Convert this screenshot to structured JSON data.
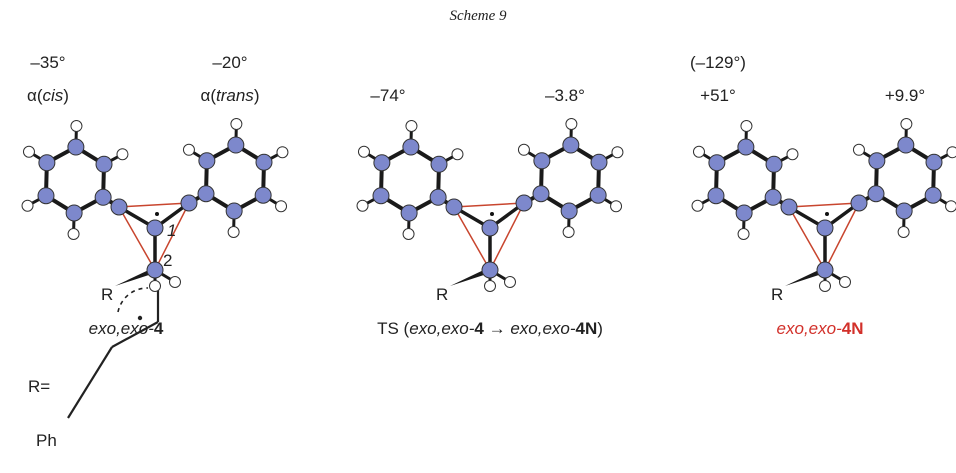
{
  "title": "Scheme 9",
  "molecules": [
    {
      "angles": [
        "–35°",
        "–20°"
      ],
      "alpha_left": [
        "α(",
        "cis",
        ")"
      ],
      "alpha_right": [
        "α(",
        "trans",
        ")"
      ],
      "atom_labels": [
        "1",
        "2"
      ],
      "substituent": "R",
      "label": [
        "exo,exo-",
        "4"
      ]
    },
    {
      "angles": [
        "–74°",
        "–3.8°"
      ],
      "substituent": "R",
      "label": [
        "TS (",
        "exo,exo-",
        "4",
        " → ",
        "exo,exo-",
        "4N",
        ")"
      ]
    },
    {
      "extra_angle": "(–129°)",
      "angles": [
        "+51°",
        "+9.9°"
      ],
      "substituent": "R",
      "label": [
        "exo,exo-",
        "4N"
      ]
    }
  ],
  "r_group": {
    "label": "R=",
    "phenyl": "Ph"
  }
}
